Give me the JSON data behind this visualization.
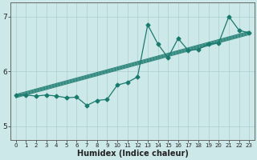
{
  "title": "",
  "xlabel": "Humidex (Indice chaleur)",
  "ylabel": "",
  "x": [
    0,
    1,
    2,
    3,
    4,
    5,
    6,
    7,
    8,
    9,
    10,
    11,
    12,
    13,
    14,
    15,
    16,
    17,
    18,
    19,
    20,
    21,
    22,
    23
  ],
  "y": [
    5.57,
    5.57,
    5.55,
    5.57,
    5.55,
    5.52,
    5.53,
    5.38,
    5.47,
    5.49,
    5.75,
    5.8,
    5.9,
    6.85,
    6.5,
    6.25,
    6.6,
    6.38,
    6.4,
    6.5,
    6.52,
    7.0,
    6.75,
    6.7
  ],
  "line_color": "#1a7a6e",
  "bg_color": "#cde8e8",
  "grid_color": "#aacfcf",
  "axis_color": "#666666",
  "ylim": [
    4.75,
    7.25
  ],
  "xlim": [
    -0.5,
    23.5
  ],
  "yticks": [
    5,
    6,
    7
  ],
  "xticks": [
    0,
    1,
    2,
    3,
    4,
    5,
    6,
    7,
    8,
    9,
    10,
    11,
    12,
    13,
    14,
    15,
    16,
    17,
    18,
    19,
    20,
    21,
    22,
    23
  ],
  "trend_y0": 5.55,
  "trend_y1": 6.7
}
